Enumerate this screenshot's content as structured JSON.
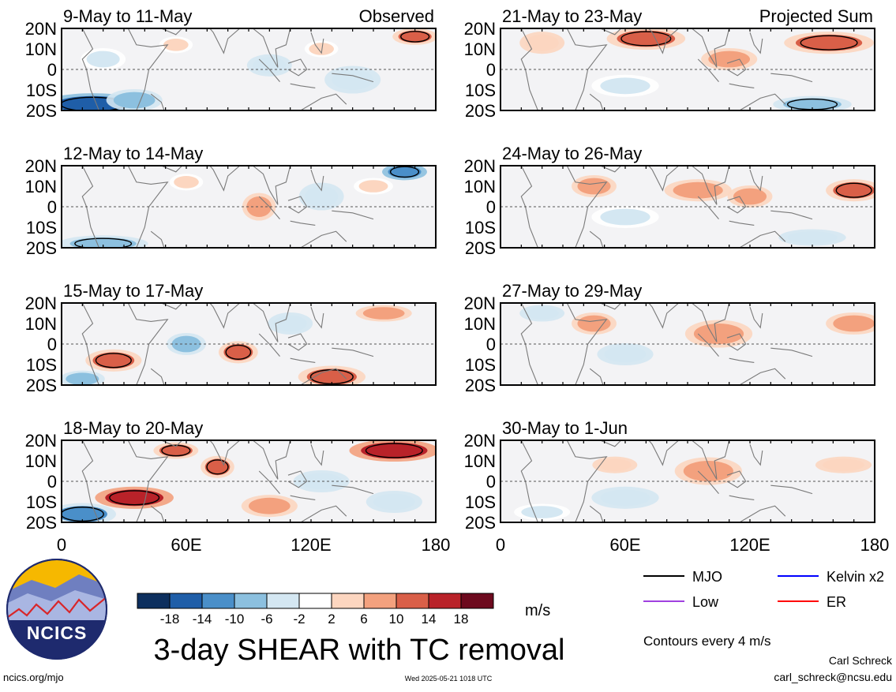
{
  "chart_data": {
    "type": "heatmap",
    "title": "3-day SHEAR with TC removal",
    "units": "m/s",
    "contour_note": "Contours every 4 m/s",
    "column_labels": [
      "Observed",
      "Projected Sum"
    ],
    "lat_ticks": [
      "20N",
      "10N",
      "0",
      "10S",
      "20S"
    ],
    "lat_values": [
      20,
      10,
      0,
      -10,
      -20
    ],
    "lon_ticks": [
      "0",
      "60E",
      "120E",
      "180"
    ],
    "lon_values": [
      0,
      60,
      120,
      180
    ],
    "xlim": [
      0,
      180
    ],
    "ylim": [
      -20,
      20
    ],
    "color_levels": [
      -18,
      -14,
      -10,
      -6,
      -2,
      2,
      6,
      10,
      14,
      18
    ],
    "colorbar_labels": [
      "-18",
      "-14",
      "-10",
      "-6",
      "-2",
      "2",
      "6",
      "10",
      "14",
      "18"
    ],
    "colorbar_colors": [
      "#0d2f5e",
      "#1f5ea8",
      "#4a8fc9",
      "#8cc0df",
      "#d4e7f2",
      "#ffffff",
      "#fcd6c0",
      "#f3a17e",
      "#d95f48",
      "#b92229",
      "#6d0a1e"
    ],
    "panels": [
      {
        "title": "9-May to 11-May",
        "column": "Observed",
        "anoms": [
          {
            "lon": 15,
            "lat": -17,
            "val": -16,
            "rx": 18,
            "ry": 4
          },
          {
            "lon": 35,
            "lat": -15,
            "val": -9,
            "rx": 10,
            "ry": 4
          },
          {
            "lon": 100,
            "lat": 2,
            "val": -5,
            "rx": 8,
            "ry": 4
          },
          {
            "lon": 140,
            "lat": -5,
            "val": -6,
            "rx": 10,
            "ry": 5
          },
          {
            "lon": 55,
            "lat": 12,
            "val": 4,
            "rx": 6,
            "ry": 3
          },
          {
            "lon": 170,
            "lat": 16,
            "val": 11,
            "rx": 8,
            "ry": 3
          },
          {
            "lon": 125,
            "lat": 10,
            "val": 4,
            "rx": 6,
            "ry": 3
          },
          {
            "lon": 20,
            "lat": 5,
            "val": -4,
            "rx": 8,
            "ry": 4
          }
        ]
      },
      {
        "title": "12-May to 14-May",
        "column": "Observed",
        "anoms": [
          {
            "lon": 20,
            "lat": -18,
            "val": -10,
            "rx": 16,
            "ry": 3
          },
          {
            "lon": 165,
            "lat": 17,
            "val": -14,
            "rx": 8,
            "ry": 3
          },
          {
            "lon": 95,
            "lat": 0,
            "val": 6,
            "rx": 6,
            "ry": 5
          },
          {
            "lon": 125,
            "lat": 5,
            "val": -5,
            "rx": 8,
            "ry": 5
          },
          {
            "lon": 150,
            "lat": 10,
            "val": 4,
            "rx": 7,
            "ry": 3
          },
          {
            "lon": 60,
            "lat": 12,
            "val": 3,
            "rx": 6,
            "ry": 3
          }
        ]
      },
      {
        "title": "15-May to 17-May",
        "column": "Observed",
        "anoms": [
          {
            "lon": 25,
            "lat": -8,
            "val": 13,
            "rx": 10,
            "ry": 4
          },
          {
            "lon": 85,
            "lat": -4,
            "val": 11,
            "rx": 7,
            "ry": 4
          },
          {
            "lon": 130,
            "lat": -16,
            "val": 12,
            "rx": 12,
            "ry": 4
          },
          {
            "lon": 155,
            "lat": 15,
            "val": 9,
            "rx": 10,
            "ry": 3
          },
          {
            "lon": 60,
            "lat": 0,
            "val": -7,
            "rx": 7,
            "ry": 4
          },
          {
            "lon": 10,
            "lat": -17,
            "val": -9,
            "rx": 8,
            "ry": 3
          },
          {
            "lon": 110,
            "lat": 10,
            "val": -5,
            "rx": 8,
            "ry": 4
          }
        ]
      },
      {
        "title": "18-May to 20-May",
        "column": "Observed",
        "anoms": [
          {
            "lon": 160,
            "lat": 15,
            "val": 17,
            "rx": 16,
            "ry": 4
          },
          {
            "lon": 35,
            "lat": -8,
            "val": 15,
            "rx": 14,
            "ry": 4
          },
          {
            "lon": 55,
            "lat": 15,
            "val": 11,
            "rx": 8,
            "ry": 3
          },
          {
            "lon": 75,
            "lat": 7,
            "val": 10,
            "rx": 6,
            "ry": 4
          },
          {
            "lon": 10,
            "lat": -16,
            "val": -13,
            "rx": 12,
            "ry": 4
          },
          {
            "lon": 100,
            "lat": -12,
            "val": 7,
            "rx": 10,
            "ry": 4
          },
          {
            "lon": 125,
            "lat": 0,
            "val": -5,
            "rx": 10,
            "ry": 4
          },
          {
            "lon": 160,
            "lat": -10,
            "val": -6,
            "rx": 10,
            "ry": 4
          }
        ]
      },
      {
        "title": "21-May to 23-May",
        "column": "Projected Sum",
        "anoms": [
          {
            "lon": 70,
            "lat": 15,
            "val": 11,
            "rx": 14,
            "ry": 4
          },
          {
            "lon": 158,
            "lat": 13,
            "val": 12,
            "rx": 16,
            "ry": 4
          },
          {
            "lon": 110,
            "lat": 5,
            "val": 6,
            "rx": 10,
            "ry": 4
          },
          {
            "lon": 150,
            "lat": -17,
            "val": -10,
            "rx": 14,
            "ry": 3
          },
          {
            "lon": 20,
            "lat": 13,
            "val": 5,
            "rx": 8,
            "ry": 4
          },
          {
            "lon": 60,
            "lat": -8,
            "val": -4,
            "rx": 12,
            "ry": 4
          }
        ]
      },
      {
        "title": "24-May to 26-May",
        "column": "Projected Sum",
        "anoms": [
          {
            "lon": 95,
            "lat": 8,
            "val": 9,
            "rx": 12,
            "ry": 4
          },
          {
            "lon": 170,
            "lat": 8,
            "val": 12,
            "rx": 10,
            "ry": 4
          },
          {
            "lon": 45,
            "lat": 10,
            "val": 8,
            "rx": 8,
            "ry": 4
          },
          {
            "lon": 120,
            "lat": 5,
            "val": 6,
            "rx": 8,
            "ry": 4
          },
          {
            "lon": 60,
            "lat": -5,
            "val": -4,
            "rx": 12,
            "ry": 4
          },
          {
            "lon": 150,
            "lat": -15,
            "val": -5,
            "rx": 12,
            "ry": 3
          }
        ]
      },
      {
        "title": "27-May to 29-May",
        "column": "Projected Sum",
        "anoms": [
          {
            "lon": 105,
            "lat": 5,
            "val": 9,
            "rx": 12,
            "ry": 5
          },
          {
            "lon": 45,
            "lat": 10,
            "val": 7,
            "rx": 8,
            "ry": 4
          },
          {
            "lon": 170,
            "lat": 10,
            "val": 6,
            "rx": 10,
            "ry": 4
          },
          {
            "lon": 20,
            "lat": 15,
            "val": -6,
            "rx": 8,
            "ry": 3
          },
          {
            "lon": 60,
            "lat": -5,
            "val": -5,
            "rx": 10,
            "ry": 4
          }
        ]
      },
      {
        "title": "30-May to 1-Jun",
        "column": "Projected Sum",
        "anoms": [
          {
            "lon": 100,
            "lat": 5,
            "val": 7,
            "rx": 12,
            "ry": 5
          },
          {
            "lon": 55,
            "lat": 8,
            "val": 5,
            "rx": 8,
            "ry": 3
          },
          {
            "lon": 165,
            "lat": 8,
            "val": 5,
            "rx": 10,
            "ry": 3
          },
          {
            "lon": 60,
            "lat": -8,
            "val": -5,
            "rx": 12,
            "ry": 4
          },
          {
            "lon": 20,
            "lat": -15,
            "val": -4,
            "rx": 10,
            "ry": 3
          }
        ]
      }
    ],
    "legend": [
      {
        "name": "MJO",
        "color": "#000000"
      },
      {
        "name": "Kelvin x2",
        "color": "#0000ff"
      },
      {
        "name": "Low",
        "color": "#a040e0"
      },
      {
        "name": "ER",
        "color": "#ff0000"
      }
    ]
  },
  "branding": {
    "logo_text": "NCICS",
    "site": "ncics.org/mjo",
    "timestamp": "Wed 2025-05-21 1018 UTC",
    "author": "Carl Schreck",
    "email": "carl_schreck@ncsu.edu"
  }
}
